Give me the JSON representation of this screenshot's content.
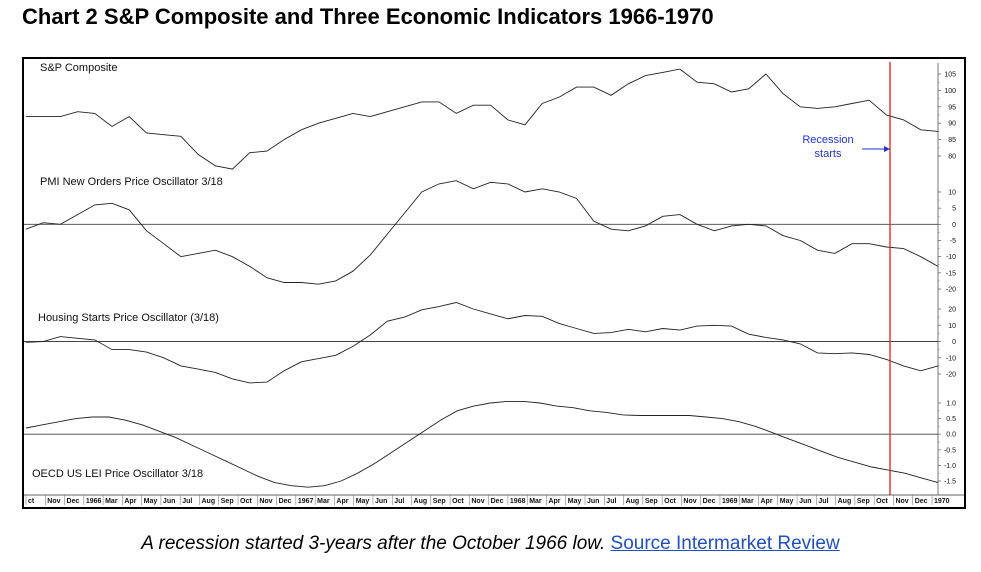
{
  "title": "Chart 2 S&P Composite and Three Economic Indicators 1966-1970",
  "caption": {
    "text": "A recession started 3-years after the October 1966 low.",
    "link_text": "Source Intermarket Review"
  },
  "colors": {
    "line": "#222222",
    "zero_line": "#444444",
    "recession_line": "#e02020",
    "annotation": "#2233cc",
    "link": "#1f4fc1"
  },
  "chart_data": {
    "type": "line",
    "x_axis_labels": [
      "ct",
      "Nov",
      "Dec",
      "1966",
      "Mar",
      "Apr",
      "May",
      "Jun",
      "Jul",
      "Aug",
      "Sep",
      "Oct",
      "Nov",
      "Dec",
      "1967",
      "Mar",
      "Apr",
      "May",
      "Jun",
      "Jul",
      "Aug",
      "Sep",
      "Oct",
      "Nov",
      "Dec",
      "1968",
      "Mar",
      "Apr",
      "May",
      "Jun",
      "Jul",
      "Aug",
      "Sep",
      "Oct",
      "Nov",
      "Dec",
      "1969",
      "Mar",
      "Apr",
      "May",
      "Jun",
      "Jul",
      "Aug",
      "Sep",
      "Oct",
      "Nov",
      "Dec",
      "1970"
    ],
    "recession_start_index": 45.5,
    "annotation": {
      "lines": [
        "Recession",
        "starts"
      ]
    },
    "panels": [
      {
        "name": "S&P Composite",
        "ticks": [
          105,
          100,
          95,
          90,
          85,
          80
        ],
        "ylim": [
          78,
          108
        ],
        "zero_line": false,
        "values": [
          92,
          92,
          92,
          93.5,
          93,
          89,
          92,
          87,
          86.5,
          86,
          80.5,
          77,
          76,
          81,
          81.5,
          85,
          88,
          90,
          91.5,
          93,
          92,
          93.5,
          95,
          96.5,
          96.5,
          93,
          95.5,
          95.5,
          91,
          89.5,
          96,
          98,
          101,
          101,
          98.5,
          102,
          104.5,
          105.5,
          106.5,
          102.5,
          102,
          99.5,
          100.5,
          105,
          99,
          95,
          94.5,
          95,
          96,
          97,
          92.5,
          91,
          88,
          87.5
        ]
      },
      {
        "name": "PMI New Orders Price Oscillator 3/18",
        "ticks": [
          10,
          5,
          0,
          -5,
          -10,
          -15,
          -20
        ],
        "ylim": [
          -23,
          14
        ],
        "zero_line": true,
        "values": [
          -1.5,
          0.5,
          0,
          3,
          6,
          6.5,
          4.5,
          -2,
          -6,
          -10,
          -9,
          -8,
          -10,
          -13,
          -16.5,
          -18,
          -18,
          -18.5,
          -17.5,
          -14.5,
          -9.5,
          -3,
          3.5,
          10,
          12.5,
          13.5,
          11,
          13,
          12.5,
          10,
          11,
          10,
          8,
          1,
          -1.5,
          -2,
          -0.5,
          2.5,
          3,
          0,
          -2,
          -0.5,
          0,
          -0.5,
          -3.5,
          -5,
          -8,
          -9,
          -6,
          -6,
          -7,
          -7.5,
          -10,
          -13
        ]
      },
      {
        "name": "Housing Starts Price Oscillator (3/18)",
        "ticks": [
          20,
          10,
          0,
          -10,
          -20
        ],
        "ylim": [
          -25,
          26
        ],
        "zero_line": true,
        "values": [
          -0.5,
          0,
          3,
          2,
          1,
          -5,
          -5,
          -6.5,
          -10,
          -15,
          -17,
          -19,
          -23,
          -25.5,
          -25,
          -18,
          -12.5,
          -10.5,
          -8.5,
          -3,
          4,
          12.5,
          15,
          19.5,
          21.5,
          24,
          20,
          17,
          14,
          16,
          15.5,
          11,
          8,
          5,
          5.5,
          7.5,
          6,
          8,
          7,
          9.5,
          10,
          9.5,
          4.5,
          2.5,
          1,
          -1.5,
          -7,
          -7.5,
          -7,
          -8,
          -11,
          -15,
          -18,
          -15
        ]
      },
      {
        "name": "OECD US LEI Price Oscillator 3/18",
        "ticks": [
          1.0,
          0.5,
          0.0,
          -0.5,
          -1.0,
          -1.5
        ],
        "ylim": [
          -1.8,
          1.25
        ],
        "zero_line": true,
        "values": [
          0.2,
          0.3,
          0.4,
          0.5,
          0.55,
          0.55,
          0.45,
          0.3,
          0.1,
          -0.1,
          -0.35,
          -0.6,
          -0.85,
          -1.1,
          -1.35,
          -1.55,
          -1.65,
          -1.7,
          -1.65,
          -1.5,
          -1.25,
          -0.95,
          -0.6,
          -0.25,
          0.1,
          0.45,
          0.75,
          0.9,
          1.0,
          1.05,
          1.05,
          1.0,
          0.9,
          0.85,
          0.75,
          0.7,
          0.62,
          0.6,
          0.6,
          0.6,
          0.6,
          0.55,
          0.5,
          0.4,
          0.25,
          0.05,
          -0.15,
          -0.35,
          -0.55,
          -0.75,
          -0.9,
          -1.05,
          -1.15,
          -1.25,
          -1.4,
          -1.55
        ]
      }
    ]
  }
}
